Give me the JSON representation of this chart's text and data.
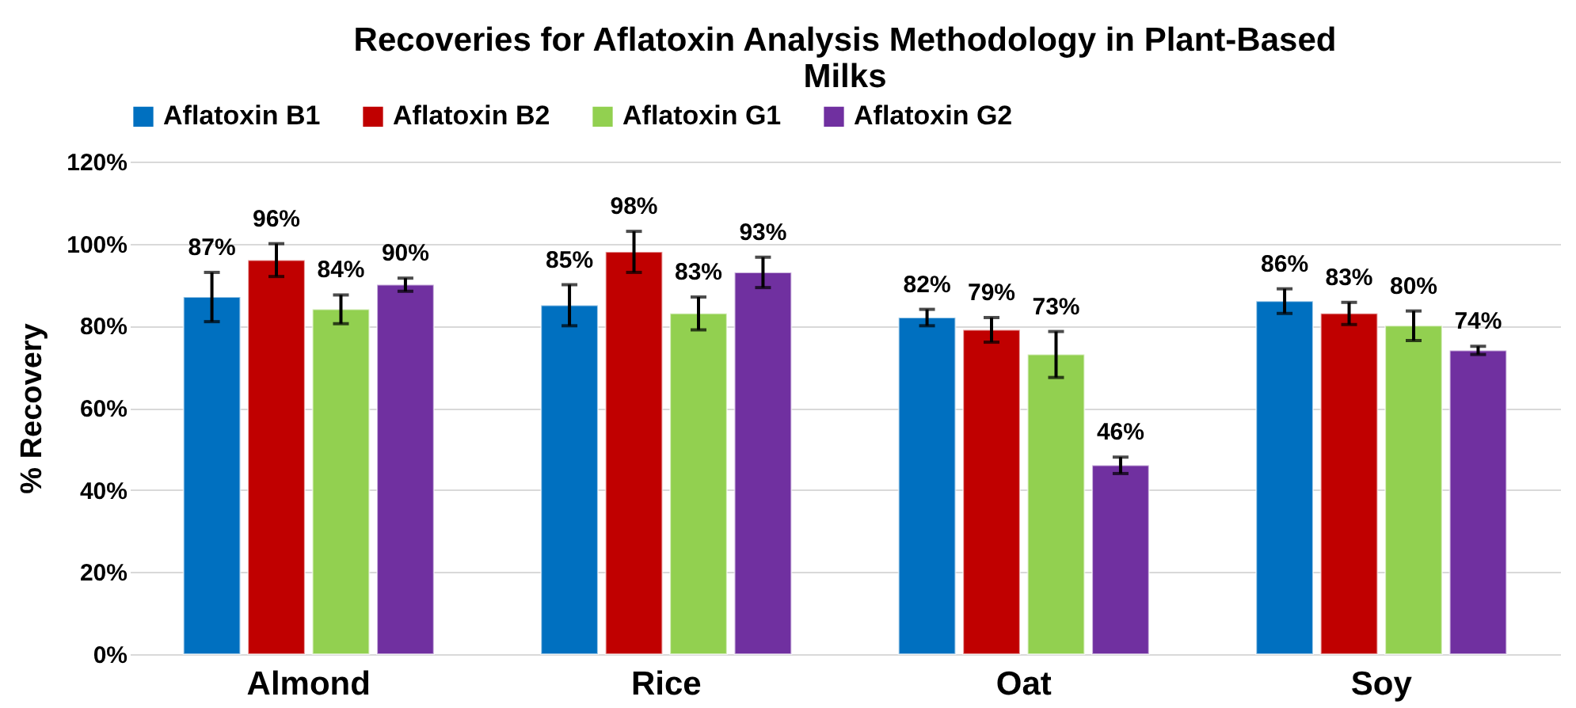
{
  "chart_data": {
    "type": "bar",
    "title": [
      "Recoveries for Aflatoxin Analysis Methodology in Plant-Based",
      "Milks"
    ],
    "ylabel": "% Recovery",
    "categories": [
      "Almond",
      "Rice",
      "Oat",
      "Soy"
    ],
    "series": [
      {
        "name": "Aflatoxin B1",
        "color": "#0070c0",
        "values": [
          87,
          85,
          82,
          86
        ],
        "errors": [
          6,
          5,
          2,
          3
        ],
        "value_labels": [
          "87%",
          "85%",
          "82%",
          "86%"
        ]
      },
      {
        "name": "Aflatoxin B2",
        "color": "#c00000",
        "values": [
          96,
          98,
          79,
          83
        ],
        "errors": [
          4,
          5,
          3,
          2.7
        ],
        "value_labels": [
          "96%",
          "98%",
          "79%",
          "83%"
        ]
      },
      {
        "name": "Aflatoxin G1",
        "color": "#92d050",
        "values": [
          84,
          83,
          73,
          80
        ],
        "errors": [
          3.5,
          4,
          5.6,
          3.6
        ],
        "value_labels": [
          "84%",
          "83%",
          "73%",
          "80%"
        ]
      },
      {
        "name": "Aflatoxin G2",
        "color": "#7030a0",
        "values": [
          90,
          93,
          46,
          74
        ],
        "errors": [
          1.6,
          3.7,
          2,
          1
        ],
        "value_labels": [
          "90%",
          "93%",
          "46%",
          "74%"
        ]
      }
    ],
    "ylim": [
      0,
      120
    ],
    "yticks": [
      {
        "value": 0,
        "label": "0%"
      },
      {
        "value": 20,
        "label": "20%"
      },
      {
        "value": 40,
        "label": "40%"
      },
      {
        "value": 60,
        "label": "60%"
      },
      {
        "value": 80,
        "label": "80%"
      },
      {
        "value": 100,
        "label": "100%"
      },
      {
        "value": 120,
        "label": "120%"
      }
    ],
    "grid": "y",
    "legend": "top"
  }
}
